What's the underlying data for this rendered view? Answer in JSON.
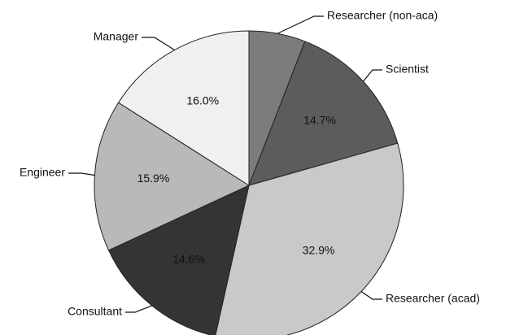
{
  "chart_data": {
    "type": "pie",
    "categories": [
      "Researcher (non-aca)",
      "Scientist",
      "Researcher (acad)",
      "Consultant",
      "Engineer",
      "Manager"
    ],
    "values": [
      5.9,
      14.7,
      32.9,
      14.6,
      15.9,
      16.0
    ],
    "value_labels": [
      null,
      "14.7%",
      "32.9%",
      "14.6%",
      "15.9%",
      "16.0%"
    ],
    "colors": [
      "#7c7c7c",
      "#5c5c5c",
      "#c9c9c9",
      "#343434",
      "#b9b9b9",
      "#f0f0f0"
    ]
  }
}
